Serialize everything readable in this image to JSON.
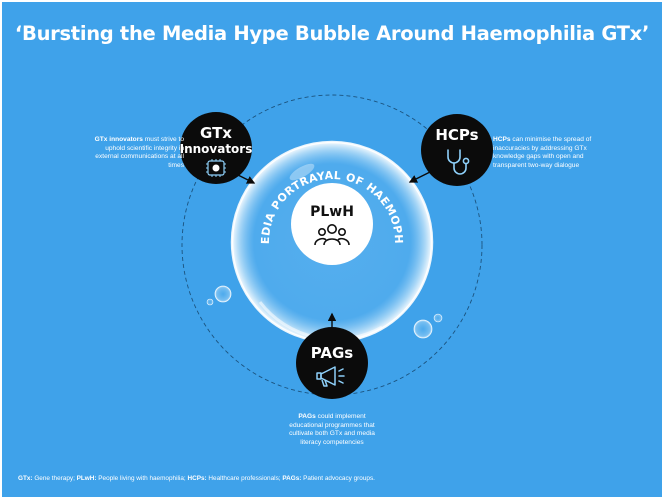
{
  "title": "‘Bursting the Media Hype Bubble Around Haemophilia GTx’",
  "bubble": {
    "arc_text": "NEWS MEDIA PORTRAYAL OF HAEMOPHILIA GTx",
    "center_label": "PLwH",
    "center_icon": "people-group-icon"
  },
  "nodes": {
    "gtx": {
      "label_line1": "GTx",
      "label_line2": "Innovators",
      "icon": "dna-microchip-icon"
    },
    "hcps": {
      "label": "HCPs",
      "icon": "stethoscope-icon"
    },
    "pags": {
      "label": "PAGs",
      "icon": "megaphone-icon"
    }
  },
  "notes": {
    "gtx": {
      "bold": "GTx innovators",
      "text": " must strive to uphold scientific integrity in external communications at all times"
    },
    "hcps": {
      "bold": "HCPs",
      "text": " can minimise the spread of inaccuracies by addressing GTx knowledge gaps with open and transparent two-way dialogue"
    },
    "pags": {
      "bold": "PAGs",
      "text": " could implement educational programmes that cultivate both GTx and media literacy competencies"
    }
  },
  "footer": [
    {
      "abbr": "GTx:",
      "text": " Gene therapy; "
    },
    {
      "abbr": "PLwH:",
      "text": " People living with haemophilia; "
    },
    {
      "abbr": "HCPs:",
      "text": " Healthcare professionals; "
    },
    {
      "abbr": "PAGs:",
      "text": " Patient advocacy groups."
    }
  ],
  "colors": {
    "background": "#3fa2ea",
    "node_fill": "#0b0b0b",
    "text": "#ffffff",
    "center_fill": "#ffffff"
  }
}
